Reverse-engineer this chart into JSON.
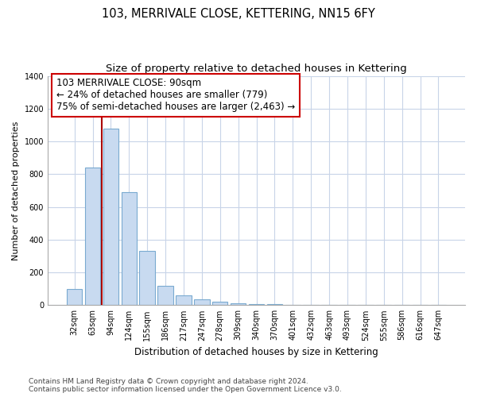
{
  "title": "103, MERRIVALE CLOSE, KETTERING, NN15 6FY",
  "subtitle": "Size of property relative to detached houses in Kettering",
  "xlabel": "Distribution of detached houses by size in Kettering",
  "ylabel": "Number of detached properties",
  "bar_labels": [
    "32sqm",
    "63sqm",
    "94sqm",
    "124sqm",
    "155sqm",
    "186sqm",
    "217sqm",
    "247sqm",
    "278sqm",
    "309sqm",
    "340sqm",
    "370sqm",
    "401sqm",
    "432sqm",
    "463sqm",
    "493sqm",
    "524sqm",
    "555sqm",
    "586sqm",
    "616sqm",
    "647sqm"
  ],
  "bar_values": [
    100,
    840,
    1080,
    690,
    330,
    120,
    60,
    35,
    22,
    12,
    8,
    5,
    0,
    0,
    0,
    0,
    0,
    0,
    0,
    0,
    0
  ],
  "bar_color": "#c8daf0",
  "bar_edge_color": "#7aaad0",
  "vline_color": "#aa0000",
  "annotation_line1": "103 MERRIVALE CLOSE: 90sqm",
  "annotation_line2": "← 24% of detached houses are smaller (779)",
  "annotation_line3": "75% of semi-detached houses are larger (2,463) →",
  "ylim": [
    0,
    1400
  ],
  "yticks": [
    0,
    200,
    400,
    600,
    800,
    1000,
    1200,
    1400
  ],
  "grid_color": "#c8d4e8",
  "footer_line1": "Contains HM Land Registry data © Crown copyright and database right 2024.",
  "footer_line2": "Contains public sector information licensed under the Open Government Licence v3.0.",
  "title_fontsize": 10.5,
  "subtitle_fontsize": 9.5,
  "xlabel_fontsize": 8.5,
  "ylabel_fontsize": 8,
  "tick_fontsize": 7,
  "annotation_fontsize": 8.5,
  "footer_fontsize": 6.5
}
